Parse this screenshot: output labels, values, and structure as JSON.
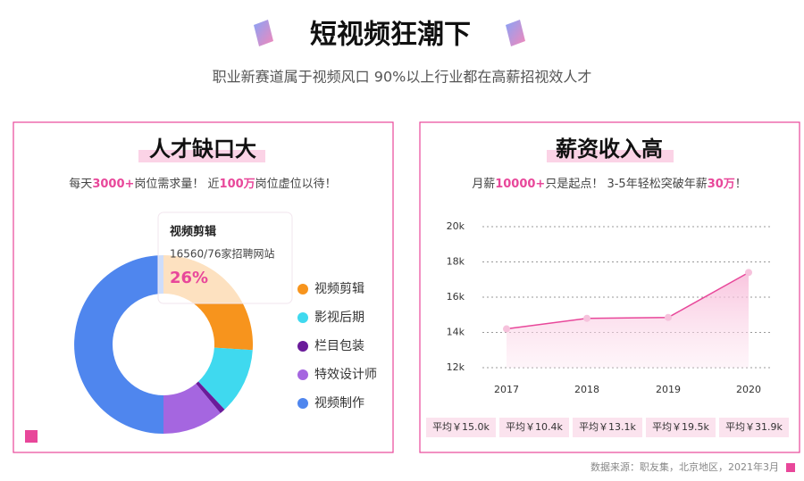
{
  "header": {
    "title": "短视频狂潮下",
    "subtitle": "职业新赛道属于视频风口  90%以上行业都在高薪招视效人才"
  },
  "chart_data": [
    {
      "type": "donut",
      "title": "人才缺口大",
      "subtitle_parts": [
        "每天",
        "3000+",
        "岗位需求量！ 近",
        "100万",
        "岗位虚位以待！"
      ],
      "categories": [
        "视频剪辑",
        "影视后期",
        "栏目包装",
        "特效设计师",
        "视频制作"
      ],
      "values": [
        26,
        12,
        1,
        11,
        50
      ],
      "value_labels": [
        "26%",
        null,
        null,
        null,
        null
      ],
      "tooltip_text": "16560/76家招聘网站",
      "colors": [
        "#f7941d",
        "#3fd9ef",
        "#6a1b9a",
        "#a566e0",
        "#4f86ee"
      ]
    },
    {
      "type": "line",
      "title": "薪资收入高",
      "subtitle_parts": [
        "月薪",
        "10000+",
        "只是起点！ 3-5年轻松突破年薪",
        "30万",
        "！"
      ],
      "categories": [
        "2017",
        "2018",
        "2019",
        "2020"
      ],
      "values": [
        14200,
        14800,
        14850,
        17400
      ],
      "color": "#e8479a",
      "ylim": [
        12000,
        20000
      ],
      "yticks": [
        {
          "value": 12000,
          "label": "12k"
        },
        {
          "value": 14000,
          "label": "14k"
        },
        {
          "value": 16000,
          "label": "16k"
        },
        {
          "value": 18000,
          "label": "18k"
        },
        {
          "value": 20000,
          "label": "20k"
        }
      ],
      "grid": true,
      "averages": [
        "平均￥15.0k",
        "平均￥10.4k",
        "平均￥13.1k",
        "平均￥19.5k",
        "平均￥31.9k"
      ]
    }
  ],
  "footer": "数据来源：职友集，北京地区，2021年3月"
}
